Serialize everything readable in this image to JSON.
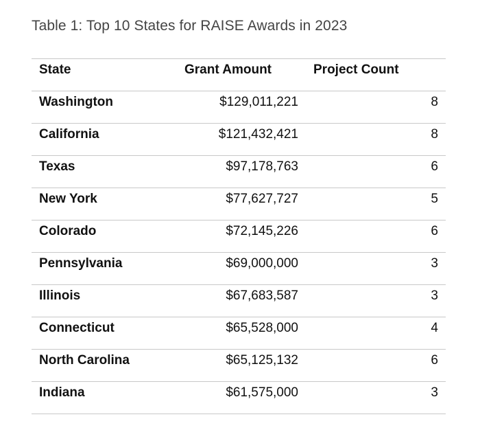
{
  "caption": "Table 1: Top 10 States for RAISE Awards in 2023",
  "table": {
    "headers": {
      "state": "State",
      "amount": "Grant Amount",
      "count": "Project Count"
    },
    "rows": [
      {
        "state": "Washington",
        "amount": "$129,011,221",
        "count": "8"
      },
      {
        "state": "California",
        "amount": "$121,432,421",
        "count": "8"
      },
      {
        "state": "Texas",
        "amount": "$97,178,763",
        "count": "6"
      },
      {
        "state": "New York",
        "amount": "$77,627,727",
        "count": "5"
      },
      {
        "state": "Colorado",
        "amount": "$72,145,226",
        "count": "6"
      },
      {
        "state": "Pennsylvania",
        "amount": "$69,000,000",
        "count": "3"
      },
      {
        "state": "Illinois",
        "amount": "$67,683,587",
        "count": "3"
      },
      {
        "state": "Connecticut",
        "amount": "$65,528,000",
        "count": "4"
      },
      {
        "state": "North Carolina",
        "amount": "$65,125,132",
        "count": "6"
      },
      {
        "state": "Indiana",
        "amount": "$61,575,000",
        "count": "3"
      }
    ]
  }
}
